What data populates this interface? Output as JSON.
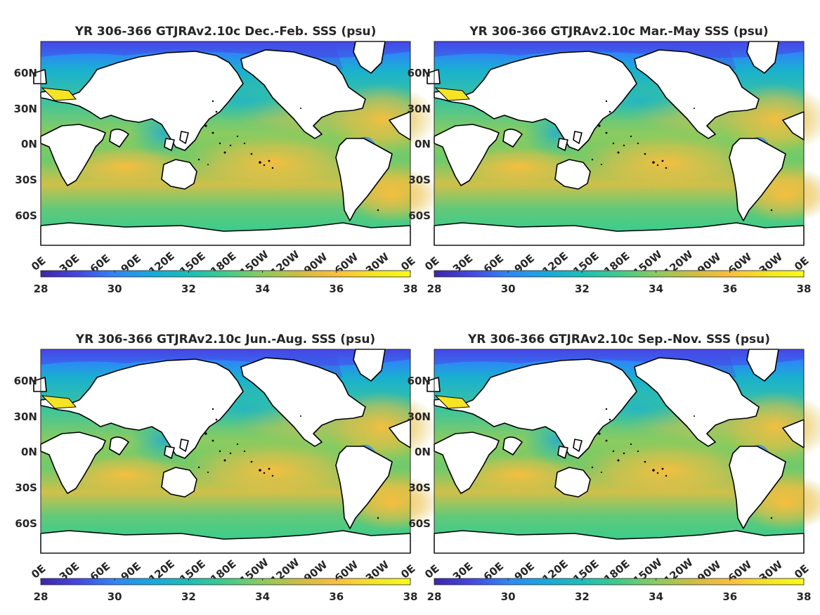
{
  "figure": {
    "panels": [
      {
        "title": "YR 306-366 GTJRAv2.10c Dec.-Feb. SSS (psu)",
        "season": "DJF"
      },
      {
        "title": "YR 306-366 GTJRAv2.10c Mar.-May SSS (psu)",
        "season": "MAM"
      },
      {
        "title": "YR 306-366 GTJRAv2.10c Jun.-Aug. SSS (psu)",
        "season": "JJA"
      },
      {
        "title": "YR 306-366 GTJRAv2.10c Sep.-Nov. SSS (psu)",
        "season": "SON"
      }
    ],
    "lat_ticks": [
      "60N",
      "30N",
      "0N",
      "30S",
      "60S"
    ],
    "lon_ticks": [
      "0E",
      "30E",
      "60E",
      "90E",
      "120E",
      "150E",
      "180E",
      "150W",
      "120W",
      "90W",
      "60W",
      "30W",
      "0E"
    ],
    "colorbar": {
      "min": 28,
      "max": 38,
      "ticks": [
        "28",
        "30",
        "32",
        "34",
        "36",
        "38"
      ],
      "colormap": "parula",
      "colors": [
        "#3e26a8",
        "#4547e3",
        "#2e87f7",
        "#17a9dd",
        "#19bfb7",
        "#3fcc8a",
        "#8ccb5e",
        "#cfbd42",
        "#fbbe3d",
        "#f5e424",
        "#f9fb15"
      ]
    },
    "colors": {
      "land": "#ffffff",
      "coast": "#000000",
      "frame": "#262626"
    }
  }
}
